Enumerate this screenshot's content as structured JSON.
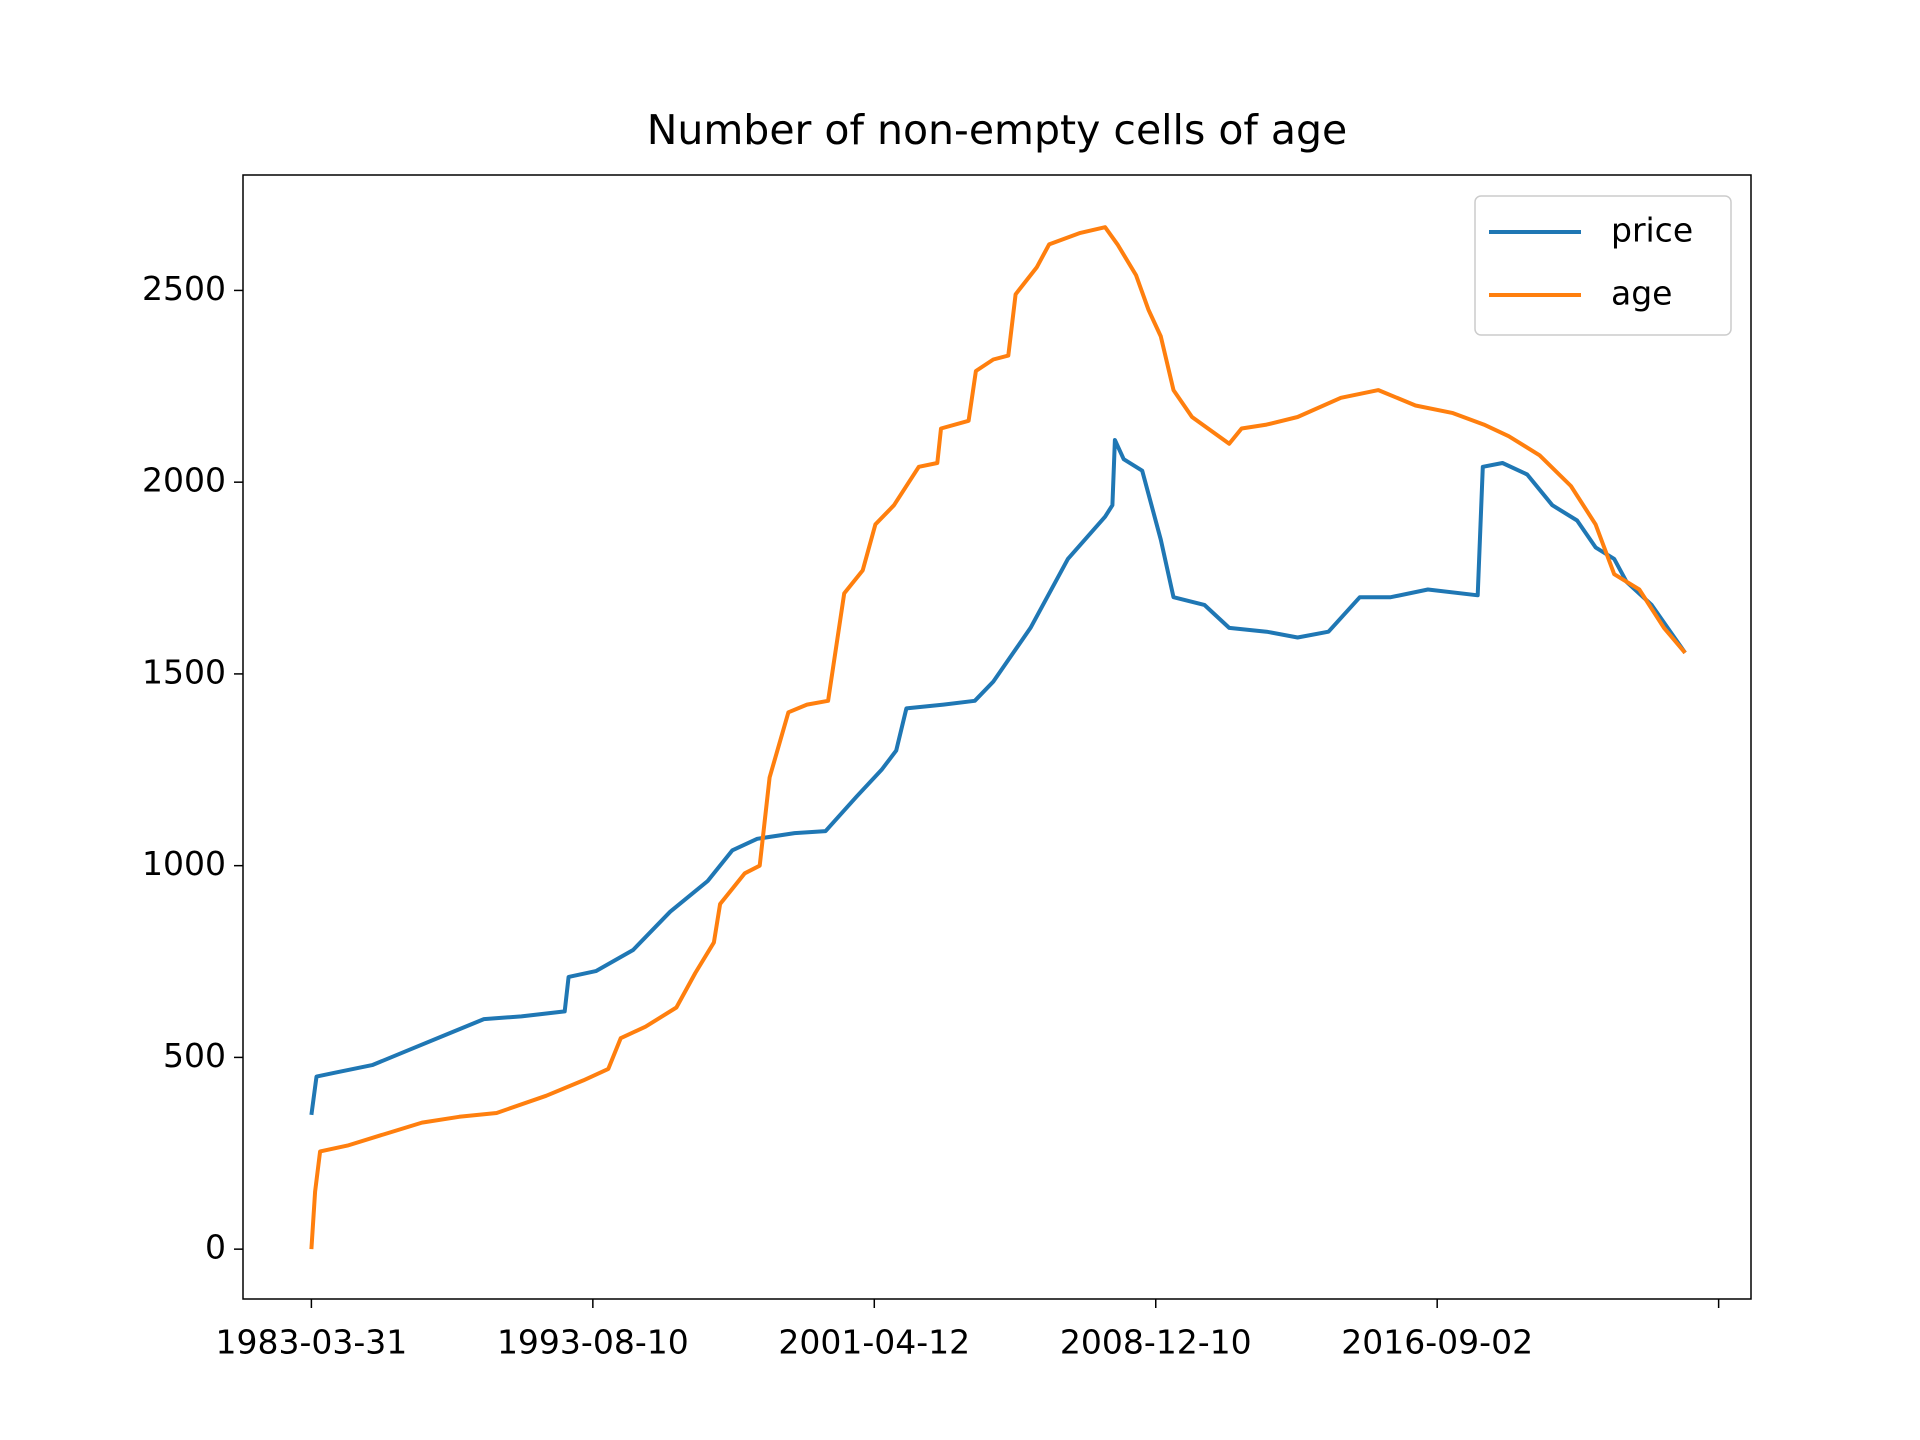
{
  "chart_data": {
    "type": "line",
    "title": "Number of non-empty cells of age",
    "xlim": [
      -243,
      5115
    ],
    "ylim": [
      -130,
      2801
    ],
    "xticks": [
      {
        "value": 0,
        "label": "1983-03-31"
      },
      {
        "value": 1000,
        "label": "1993-08-10"
      },
      {
        "value": 2000,
        "label": "2001-04-12"
      },
      {
        "value": 3000,
        "label": "2008-12-10"
      },
      {
        "value": 4000,
        "label": "2016-09-02"
      },
      {
        "value": 5000
      }
    ],
    "yticks": [
      0,
      500,
      1000,
      1500,
      2000,
      2500
    ],
    "legend": "upper right",
    "grid": false,
    "series": [
      {
        "name": "price",
        "color": "#1f77b4",
        "x": [
          0,
          18,
          84,
          216,
          349,
          481,
          613,
          746,
          900,
          914,
          1011,
          1143,
          1275,
          1408,
          1496,
          1584,
          1717,
          1827,
          1937,
          2026,
          2078,
          2114,
          2246,
          2357,
          2423,
          2555,
          2688,
          2820,
          2846,
          2855,
          2886,
          2952,
          3018,
          3063,
          3173,
          3261,
          3394,
          3504,
          3614,
          3725,
          3835,
          3967,
          4144,
          4162,
          4232,
          4320,
          4409,
          4497,
          4563,
          4629,
          4673,
          4762,
          4881
        ],
        "values": [
          350,
          450,
          460,
          480,
          520,
          560,
          600,
          607,
          620,
          710,
          725,
          780,
          880,
          960,
          1040,
          1070,
          1085,
          1090,
          1180,
          1250,
          1300,
          1410,
          1420,
          1430,
          1480,
          1620,
          1800,
          1910,
          1940,
          2110,
          2060,
          2030,
          1850,
          1700,
          1680,
          1620,
          1610,
          1595,
          1610,
          1700,
          1700,
          1720,
          1705,
          2040,
          2050,
          2020,
          1940,
          1900,
          1830,
          1800,
          1740,
          1680,
          1555
        ]
      },
      {
        "name": "age",
        "color": "#ff7f0e",
        "x": [
          0,
          13,
          31,
          128,
          260,
          393,
          525,
          658,
          834,
          966,
          1055,
          1099,
          1187,
          1297,
          1364,
          1430,
          1452,
          1540,
          1593,
          1628,
          1695,
          1761,
          1836,
          1893,
          1959,
          2004,
          2070,
          2158,
          2224,
          2237,
          2335,
          2361,
          2423,
          2476,
          2502,
          2577,
          2621,
          2732,
          2820,
          2864,
          2930,
          2974,
          3018,
          3063,
          3129,
          3261,
          3305,
          3394,
          3504,
          3658,
          3791,
          3923,
          4056,
          4166,
          4254,
          4364,
          4475,
          4563,
          4629,
          4718,
          4806,
          4881
        ],
        "values": [
          0,
          150,
          255,
          270,
          300,
          330,
          345,
          355,
          400,
          440,
          470,
          550,
          580,
          630,
          720,
          800,
          900,
          980,
          1000,
          1230,
          1400,
          1420,
          1430,
          1710,
          1770,
          1890,
          1940,
          2040,
          2050,
          2140,
          2160,
          2290,
          2320,
          2330,
          2490,
          2560,
          2620,
          2650,
          2665,
          2620,
          2540,
          2450,
          2380,
          2240,
          2170,
          2100,
          2140,
          2150,
          2170,
          2220,
          2240,
          2200,
          2180,
          2150,
          2120,
          2070,
          1990,
          1890,
          1760,
          1720,
          1620,
          1555
        ]
      }
    ]
  }
}
